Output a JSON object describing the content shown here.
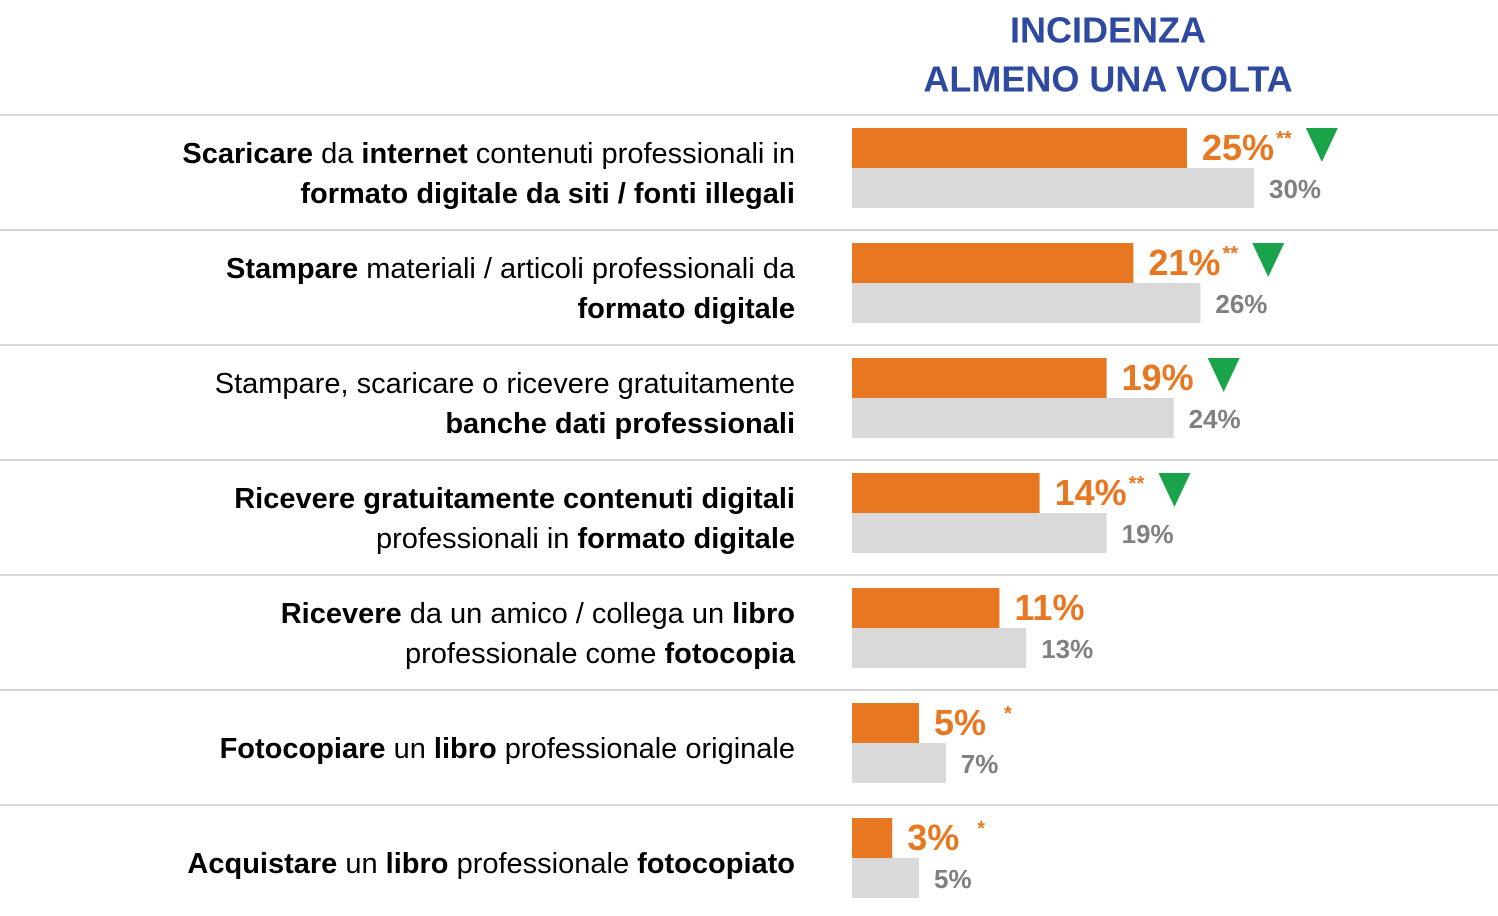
{
  "chart_data": {
    "type": "bar",
    "orientation": "horizontal",
    "title": [
      "INCIDENZA",
      "ALMENO UNA VOLTA"
    ],
    "title_color": "#2e4aa0",
    "categories": [
      [
        [
          {
            "text": "Scaricare",
            "bold": true
          },
          {
            "text": " da ",
            "bold": false
          },
          {
            "text": "internet",
            "bold": true
          },
          {
            "text": " contenuti professionali in",
            "bold": false
          }
        ],
        [
          {
            "text": "formato digitale da siti / fonti illegali",
            "bold": true
          }
        ]
      ],
      [
        [
          {
            "text": "Stampare",
            "bold": true
          },
          {
            "text": " materiali / articoli professionali da",
            "bold": false
          }
        ],
        [
          {
            "text": "formato digitale",
            "bold": true
          }
        ]
      ],
      [
        [
          {
            "text": "Stampare, scaricare o ricevere gratuitamente",
            "bold": false
          }
        ],
        [
          {
            "text": "banche dati professionali",
            "bold": true
          }
        ]
      ],
      [
        [
          {
            "text": "Ricevere gratuitamente contenuti digitali",
            "bold": true
          }
        ],
        [
          {
            "text": "professionali in ",
            "bold": false
          },
          {
            "text": "formato digitale",
            "bold": true
          }
        ]
      ],
      [
        [
          {
            "text": "Ricevere",
            "bold": true
          },
          {
            "text": " da un amico / collega un ",
            "bold": false
          },
          {
            "text": "libro",
            "bold": true
          }
        ],
        [
          {
            "text": "professionale come ",
            "bold": false
          },
          {
            "text": "fotocopia",
            "bold": true
          }
        ]
      ],
      [
        [
          {
            "text": "Fotocopiare",
            "bold": true
          },
          {
            "text": " un ",
            "bold": false
          },
          {
            "text": "libro",
            "bold": true
          },
          {
            "text": " professionale originale",
            "bold": false
          }
        ]
      ],
      [
        [
          {
            "text": "Acquistare",
            "bold": true
          },
          {
            "text": " un ",
            "bold": false
          },
          {
            "text": "libro",
            "bold": true
          },
          {
            "text": " professionale ",
            "bold": false
          },
          {
            "text": "fotocopiato",
            "bold": true
          }
        ]
      ]
    ],
    "series": [
      {
        "color": "#e87722",
        "values": [
          25,
          21,
          19,
          14,
          11,
          5,
          3
        ],
        "value_labels": [
          "25%",
          "21%",
          "19%",
          "14%",
          "11%",
          "5%",
          "3%"
        ],
        "markers": [
          "**",
          "**",
          null,
          "**",
          null,
          "*",
          "*"
        ],
        "significant_decrease": [
          true,
          true,
          true,
          true,
          false,
          false,
          false
        ],
        "decrease_color": "#1aa34a"
      },
      {
        "color": "#d9d9d9",
        "label_color": "#808080",
        "values": [
          30,
          26,
          24,
          19,
          13,
          7,
          5
        ],
        "value_labels": [
          "30%",
          "26%",
          "24%",
          "19%",
          "13%",
          "7%",
          "5%"
        ]
      }
    ]
  }
}
